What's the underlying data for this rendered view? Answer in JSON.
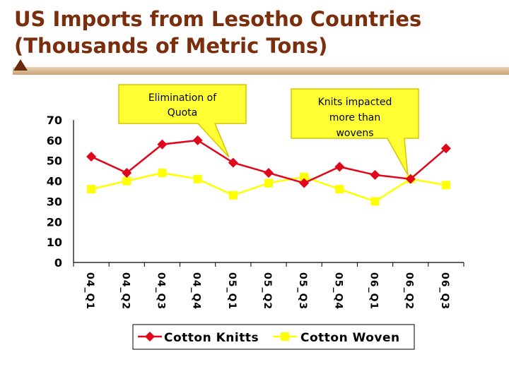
{
  "page": {
    "title_line1": "US Imports from Lesotho Countries",
    "title_line2": "(Thousands of Metric Tons)"
  },
  "colors": {
    "title": "#7a2e0c",
    "title_rule": "#d9b894",
    "knits": "#e0071b",
    "woven": "#ffff00",
    "callout_fill": "#ffff33",
    "callout_stroke": "#d8c400"
  },
  "chart_data": {
    "type": "line",
    "title": "US Imports from Lesotho Countries (Thousands of Metric Tons)",
    "categories": [
      "04_Q1",
      "04_Q2",
      "04_Q3",
      "04_Q4",
      "05_Q1",
      "05_Q2",
      "05_Q3",
      "05_Q4",
      "06_Q1",
      "06_Q2",
      "06_Q3"
    ],
    "series": [
      {
        "name": "Cotton Knitts",
        "color": "#e0071b",
        "marker": "diamond",
        "values": [
          52,
          44,
          58,
          60,
          49,
          44,
          39,
          47,
          43,
          41,
          56
        ]
      },
      {
        "name": "Cotton Woven",
        "color": "#ffff00",
        "marker": "square",
        "values": [
          36,
          40,
          44,
          41,
          33,
          39,
          42,
          36,
          30,
          41,
          38
        ]
      }
    ],
    "ylim": [
      0,
      70
    ],
    "yticks": [
      "0",
      "10",
      "20",
      "30",
      "40",
      "50",
      "60",
      "70"
    ],
    "grid": false,
    "legend": "bottom",
    "annotations": [
      {
        "lines": [
          "Elimination of",
          "Quota"
        ],
        "points_to": "05_Q1",
        "series": "Cotton Knitts"
      },
      {
        "lines": [
          "Knits impacted",
          "more than",
          "wovens"
        ],
        "points_to": "06_Q2",
        "series": "Cotton Knitts"
      }
    ]
  }
}
